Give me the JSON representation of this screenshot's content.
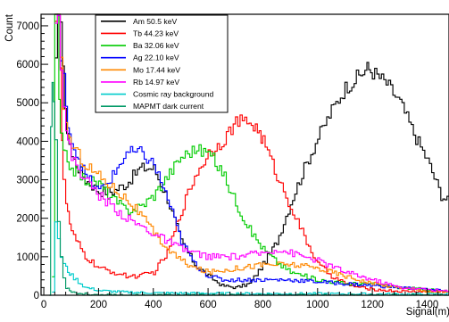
{
  "chart_data": {
    "type": "line",
    "title": "",
    "xlabel": "Signal(m)",
    "ylabel": "Count",
    "xlim": [
      -10,
      1480
    ],
    "ylim": [
      0,
      7300
    ],
    "x_ticks": [
      0,
      200,
      400,
      600,
      800,
      1000,
      1200,
      1400
    ],
    "x_tick_labels": [
      "0",
      "200",
      "400",
      "600",
      "800",
      "1000",
      "1200",
      "1400"
    ],
    "y_ticks": [
      0,
      1000,
      2000,
      3000,
      4000,
      5000,
      6000,
      7000
    ],
    "y_tick_labels": [
      "0",
      "1000",
      "2000",
      "3000",
      "4000",
      "5000",
      "6000",
      "7000"
    ],
    "grid": false,
    "legend_position": "top-left",
    "series": [
      {
        "name": "Am 50.5 keV",
        "color": "#000000",
        "x": [
          40,
          50,
          60,
          75,
          100,
          150,
          200,
          250,
          300,
          350,
          400,
          450,
          500,
          550,
          600,
          650,
          700,
          750,
          800,
          850,
          900,
          950,
          1000,
          1050,
          1100,
          1150,
          1180,
          1200,
          1250,
          1300,
          1350,
          1400,
          1450,
          1480
        ],
        "y": [
          6000,
          7300,
          7300,
          4700,
          3600,
          3000,
          2700,
          2700,
          2900,
          3300,
          3300,
          2500,
          1400,
          800,
          500,
          250,
          200,
          300,
          800,
          1400,
          2400,
          3300,
          4100,
          4800,
          5400,
          5700,
          5900,
          5800,
          5500,
          5000,
          4200,
          3500,
          2600,
          2400
        ]
      },
      {
        "name": "Tb 44.23 keV",
        "color": "#ff0000",
        "x": [
          40,
          50,
          60,
          65,
          70,
          80,
          100,
          150,
          200,
          250,
          300,
          350,
          400,
          450,
          500,
          550,
          600,
          650,
          700,
          750,
          780,
          800,
          850,
          900,
          950,
          1000,
          1050,
          1100,
          1150,
          1200,
          1300,
          1400,
          1480
        ],
        "y": [
          7300,
          7300,
          6000,
          4000,
          2900,
          2400,
          1600,
          1000,
          700,
          600,
          500,
          500,
          600,
          1100,
          2200,
          3100,
          3700,
          4000,
          4500,
          4500,
          4300,
          4000,
          3100,
          2300,
          1500,
          800,
          500,
          300,
          200,
          150,
          100,
          100,
          100
        ]
      },
      {
        "name": "Ba 32.06 keV",
        "color": "#00cc00",
        "x": [
          30,
          40,
          50,
          55,
          60,
          70,
          100,
          150,
          200,
          250,
          300,
          350,
          400,
          450,
          500,
          550,
          600,
          650,
          700,
          750,
          800,
          850,
          900,
          1000,
          1100,
          1200,
          1300,
          1400,
          1480
        ],
        "y": [
          500,
          7300,
          7300,
          5000,
          4100,
          3700,
          3300,
          3000,
          2900,
          2500,
          2200,
          2300,
          2600,
          3100,
          3600,
          3800,
          3700,
          3200,
          2400,
          1700,
          1200,
          850,
          600,
          400,
          300,
          300,
          200,
          150,
          100
        ]
      },
      {
        "name": "Ag 22.10 keV",
        "color": "#0000ff",
        "x": [
          40,
          50,
          60,
          70,
          80,
          100,
          150,
          200,
          250,
          300,
          350,
          400,
          450,
          500,
          550,
          600,
          650,
          700,
          800,
          900,
          1000,
          1100,
          1200,
          1300,
          1400,
          1480
        ],
        "y": [
          7300,
          7300,
          6000,
          5600,
          4800,
          4000,
          3100,
          2700,
          3100,
          3700,
          3700,
          3400,
          2500,
          1400,
          800,
          500,
          400,
          400,
          400,
          400,
          350,
          300,
          250,
          200,
          150,
          100
        ]
      },
      {
        "name": "Mo 17.44 keV",
        "color": "#ff8800",
        "x": [
          40,
          50,
          60,
          70,
          80,
          100,
          150,
          200,
          250,
          300,
          350,
          400,
          450,
          500,
          550,
          600,
          700,
          800,
          900,
          1000,
          1100,
          1200,
          1300,
          1400,
          1480
        ],
        "y": [
          7300,
          7300,
          6000,
          5000,
          4400,
          3900,
          3400,
          3100,
          2800,
          2500,
          2100,
          1600,
          1200,
          900,
          700,
          600,
          700,
          800,
          800,
          700,
          500,
          300,
          200,
          100,
          80
        ]
      },
      {
        "name": "Rb 14.97 keV",
        "color": "#ff00ff",
        "x": [
          40,
          50,
          60,
          70,
          80,
          100,
          150,
          200,
          250,
          300,
          350,
          400,
          450,
          500,
          600,
          700,
          800,
          850,
          900,
          950,
          1000,
          1100,
          1200,
          1300,
          1400,
          1480
        ],
        "y": [
          7300,
          7300,
          6000,
          5000,
          4200,
          3600,
          3000,
          2600,
          2300,
          2000,
          1800,
          1600,
          1400,
          1200,
          1000,
          1000,
          1100,
          1200,
          1100,
          1000,
          900,
          600,
          400,
          200,
          150,
          100
        ]
      },
      {
        "name": "Cosmic ray background",
        "color": "#00cccc",
        "x": [
          30,
          40,
          50,
          60,
          70,
          80,
          100,
          150,
          200,
          300,
          400,
          600,
          800,
          1000,
          1200,
          1400,
          1480
        ],
        "y": [
          100,
          1800,
          1500,
          1000,
          800,
          700,
          500,
          200,
          120,
          80,
          60,
          50,
          40,
          40,
          30,
          30,
          30
        ]
      },
      {
        "name": "MAPMT dark current",
        "color": "#009966",
        "x": [
          20,
          25,
          30,
          35,
          40,
          50,
          60,
          70,
          80,
          100,
          120,
          150,
          200,
          400,
          1480
        ],
        "y": [
          0,
          4400,
          5500,
          5000,
          4000,
          2000,
          1000,
          500,
          200,
          100,
          50,
          30,
          10,
          0,
          0
        ]
      }
    ]
  }
}
